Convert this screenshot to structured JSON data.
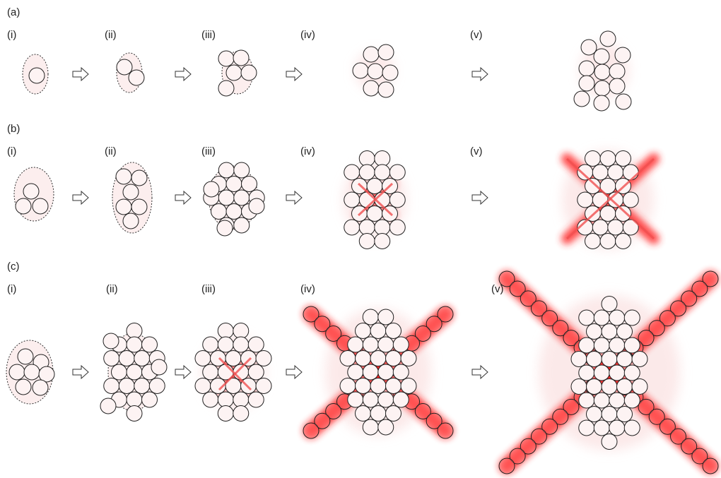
{
  "rows": [
    {
      "label": "(a)",
      "stages": [
        "(i)",
        "(ii)",
        "(iii)",
        "(iv)",
        "(v)"
      ]
    },
    {
      "label": "(b)",
      "stages": [
        "(i)",
        "(ii)",
        "(iii)",
        "(iv)",
        "(v)"
      ]
    },
    {
      "label": "(c)",
      "stages": [
        "(i)",
        "(ii)",
        "(iii)",
        "(iv)",
        "(v)"
      ]
    }
  ]
}
